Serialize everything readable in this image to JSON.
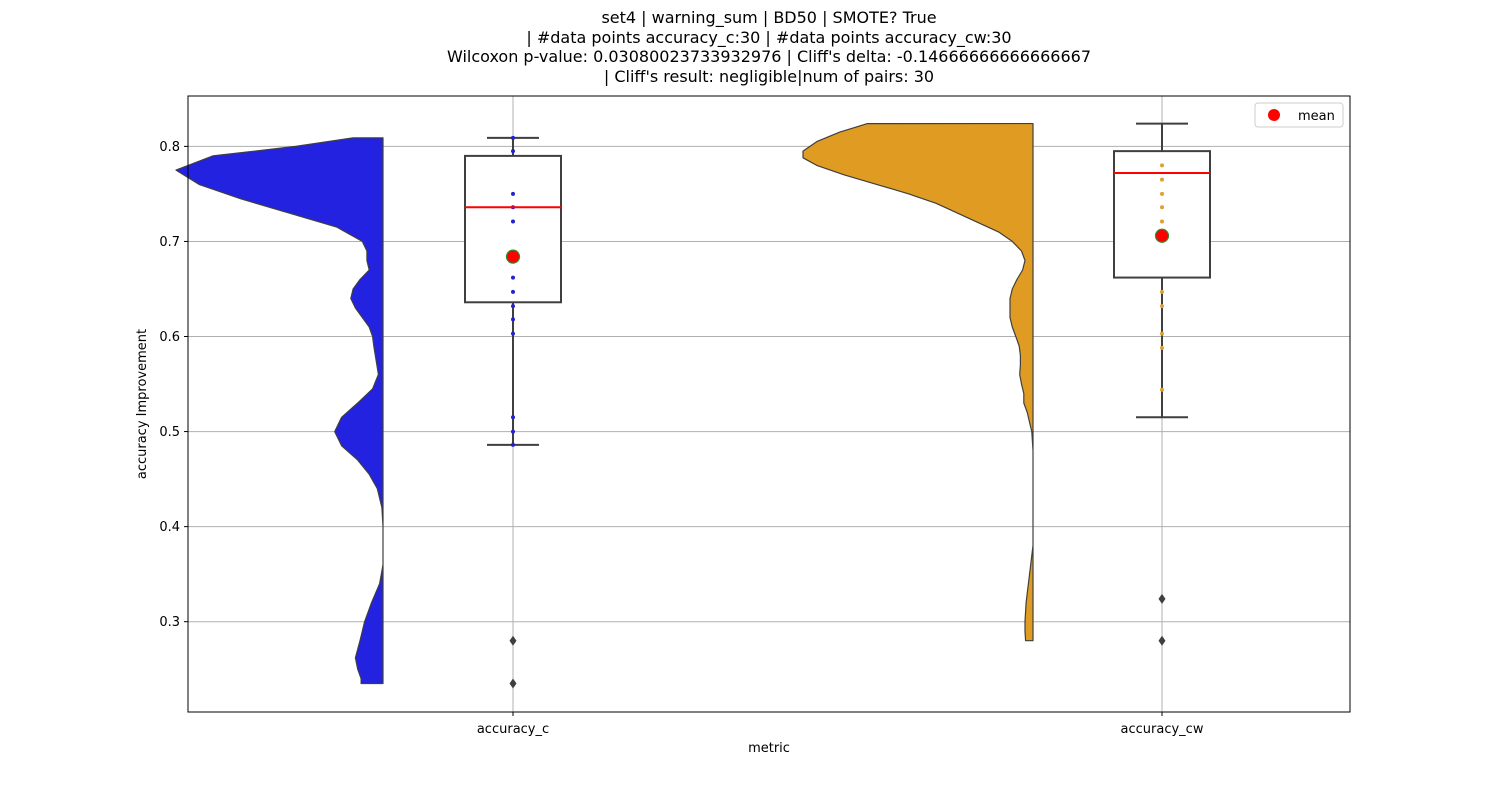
{
  "chart_data": {
    "type": "raincloud",
    "title_lines": [
      "set4 | warning_sum | BD50 | SMOTE? True",
      "| #data points accuracy_c:30 | #data points accuracy_cw:30",
      "Wilcoxon p-value: 0.03080023733932976 | Cliff's delta: -0.14666666666666667",
      "| Cliff's result: negligible|num of pairs: 30"
    ],
    "xlabel": "metric",
    "ylabel": "accuracy Improvement",
    "categories": [
      "accuracy_c",
      "accuracy_cw"
    ],
    "ylim": [
      0.205,
      0.853
    ],
    "yticks": [
      0.3,
      0.4,
      0.5,
      0.6,
      0.7,
      0.8
    ],
    "ytick_labels": [
      "0.3",
      "0.4",
      "0.5",
      "0.6",
      "0.7",
      "0.8"
    ],
    "grid": true,
    "legend": {
      "position": "top-right",
      "entries": [
        {
          "label": "mean",
          "color": "#ff0000",
          "marker": "circle"
        }
      ]
    },
    "series": [
      {
        "category": "accuracy_c",
        "violin_color": "#2222e0",
        "point_color": "#2222cc",
        "box": {
          "q1": 0.636,
          "median": 0.736,
          "q3": 0.79,
          "whisker_low": 0.486,
          "whisker_high": 0.809
        },
        "mean": 0.684,
        "outliers": [
          0.28,
          0.235
        ],
        "points": [
          0.809,
          0.795,
          0.75,
          0.736,
          0.721,
          0.662,
          0.647,
          0.632,
          0.618,
          0.603,
          0.515,
          0.5,
          0.486
        ],
        "density": [
          [
            0.809,
            0.13
          ],
          [
            0.8,
            0.38
          ],
          [
            0.79,
            0.74
          ],
          [
            0.775,
            0.9
          ],
          [
            0.76,
            0.8
          ],
          [
            0.745,
            0.62
          ],
          [
            0.73,
            0.41
          ],
          [
            0.715,
            0.2
          ],
          [
            0.7,
            0.09
          ],
          [
            0.69,
            0.07
          ],
          [
            0.68,
            0.07
          ],
          [
            0.67,
            0.06
          ],
          [
            0.66,
            0.1
          ],
          [
            0.65,
            0.13
          ],
          [
            0.64,
            0.14
          ],
          [
            0.63,
            0.12
          ],
          [
            0.62,
            0.09
          ],
          [
            0.61,
            0.06
          ],
          [
            0.6,
            0.045
          ],
          [
            0.59,
            0.04
          ],
          [
            0.575,
            0.03
          ],
          [
            0.56,
            0.02
          ],
          [
            0.545,
            0.045
          ],
          [
            0.53,
            0.11
          ],
          [
            0.515,
            0.18
          ],
          [
            0.5,
            0.21
          ],
          [
            0.485,
            0.18
          ],
          [
            0.47,
            0.11
          ],
          [
            0.455,
            0.06
          ],
          [
            0.44,
            0.025
          ],
          [
            0.42,
            0.005
          ],
          [
            0.4,
            0.0
          ],
          [
            0.38,
            0.0
          ],
          [
            0.36,
            0.0
          ],
          [
            0.34,
            0.015
          ],
          [
            0.32,
            0.05
          ],
          [
            0.3,
            0.08
          ],
          [
            0.28,
            0.1
          ],
          [
            0.262,
            0.12
          ],
          [
            0.25,
            0.11
          ],
          [
            0.24,
            0.095
          ],
          [
            0.235,
            0.095
          ]
        ]
      },
      {
        "category": "accuracy_cw",
        "violin_color": "#e09c22",
        "point_color": "#e0a030",
        "box": {
          "q1": 0.662,
          "median": 0.772,
          "q3": 0.795,
          "whisker_low": 0.515,
          "whisker_high": 0.824
        },
        "mean": 0.706,
        "outliers": [
          0.324,
          0.28
        ],
        "points": [
          0.78,
          0.765,
          0.75,
          0.736,
          0.721,
          0.706,
          0.647,
          0.632,
          0.603,
          0.588,
          0.544
        ],
        "density": [
          [
            0.824,
            0.72
          ],
          [
            0.815,
            0.84
          ],
          [
            0.805,
            0.94
          ],
          [
            0.795,
            1.0
          ],
          [
            0.788,
            1.0
          ],
          [
            0.78,
            0.94
          ],
          [
            0.77,
            0.82
          ],
          [
            0.76,
            0.68
          ],
          [
            0.75,
            0.54
          ],
          [
            0.74,
            0.42
          ],
          [
            0.73,
            0.33
          ],
          [
            0.72,
            0.24
          ],
          [
            0.71,
            0.15
          ],
          [
            0.7,
            0.09
          ],
          [
            0.69,
            0.05
          ],
          [
            0.68,
            0.035
          ],
          [
            0.67,
            0.045
          ],
          [
            0.66,
            0.07
          ],
          [
            0.65,
            0.09
          ],
          [
            0.64,
            0.1
          ],
          [
            0.63,
            0.1
          ],
          [
            0.62,
            0.1
          ],
          [
            0.61,
            0.09
          ],
          [
            0.6,
            0.075
          ],
          [
            0.59,
            0.06
          ],
          [
            0.58,
            0.055
          ],
          [
            0.57,
            0.055
          ],
          [
            0.56,
            0.058
          ],
          [
            0.55,
            0.05
          ],
          [
            0.54,
            0.04
          ],
          [
            0.53,
            0.04
          ],
          [
            0.52,
            0.025
          ],
          [
            0.51,
            0.015
          ],
          [
            0.5,
            0.005
          ],
          [
            0.48,
            0.0
          ],
          [
            0.46,
            0.0
          ],
          [
            0.44,
            0.0
          ],
          [
            0.42,
            0.0
          ],
          [
            0.4,
            0.0
          ],
          [
            0.38,
            0.0
          ],
          [
            0.36,
            0.01
          ],
          [
            0.34,
            0.02
          ],
          [
            0.32,
            0.03
          ],
          [
            0.3,
            0.035
          ],
          [
            0.29,
            0.035
          ],
          [
            0.28,
            0.032
          ]
        ]
      }
    ]
  }
}
